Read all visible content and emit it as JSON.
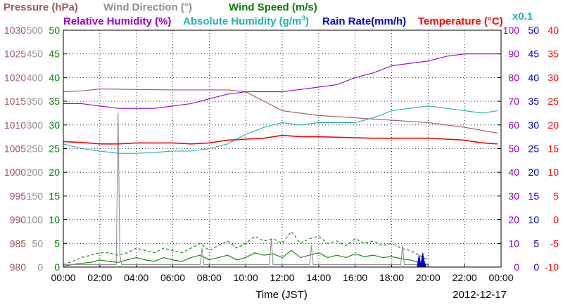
{
  "chart_data": {
    "type": "line",
    "legend": {
      "pressure": "Pressure (hPa)",
      "wind_direction": "Wind Direction (°)",
      "wind_speed": "Wind Speed (m/s)",
      "relative_humidity": "Relative Humidity (%)",
      "absolute_humidity": "Absolute Humidity (g/m",
      "absolute_humidity_sup": "3",
      "absolute_humidity_end": ")",
      "rain_rate": "Rain Rate(mm/h)",
      "temperature": "Temperature (°C)",
      "rain_scale": "x0.1"
    },
    "colors": {
      "pressure": "#a05a5a",
      "wind_direction": "#909090",
      "wind_speed": "#008000",
      "relative_humidity": "#9400d3",
      "absolute_humidity": "#20b2b2",
      "rain_rate": "#0000cd",
      "temperature": "#ff0000"
    },
    "xlabel": "Time (JST)",
    "date": "2012-12-17",
    "xlim": [
      0,
      24
    ],
    "x_ticks": [
      "00:00",
      "02:00",
      "04:00",
      "06:00",
      "08:00",
      "10:00",
      "12:00",
      "14:00",
      "16:00",
      "18:00",
      "20:00",
      "22:00",
      "00:00"
    ],
    "axes": {
      "pressure": {
        "ticks": [
          "1030",
          "1025",
          "1020",
          "1015",
          "1010",
          "1005",
          "1000",
          "995",
          "990",
          "985",
          "980"
        ],
        "ylim": [
          980,
          1030
        ]
      },
      "wind_direction": {
        "ticks": [
          "500",
          "450",
          "400",
          "350",
          "300",
          "250",
          "200",
          "150",
          "100",
          "50",
          "0"
        ],
        "ylim": [
          0,
          500
        ]
      },
      "wind_speed": {
        "ticks": [
          "50",
          "45",
          "40",
          "35",
          "30",
          "25",
          "20",
          "15",
          "10",
          "5",
          "0"
        ],
        "ylim": [
          0,
          50
        ]
      },
      "relative_humidity": {
        "ticks": [
          "100",
          "90",
          "80",
          "70",
          "60",
          "50",
          "40",
          "30",
          "20",
          "10",
          "0"
        ],
        "ylim": [
          0,
          100
        ]
      },
      "rain_rate": {
        "ticks": [
          "50",
          "45",
          "40",
          "35",
          "30",
          "25",
          "20",
          "15",
          "10",
          "5",
          "0"
        ],
        "ylim": [
          0,
          50
        ]
      },
      "temperature": {
        "ticks": [
          "40",
          "35",
          "30",
          "25",
          "20",
          "15",
          "10",
          "5",
          "0",
          "-5",
          "-10"
        ],
        "ylim": [
          -10,
          40
        ]
      }
    },
    "series": [
      {
        "name": "Pressure (hPa)",
        "axis": "pressure",
        "x": [
          0,
          1,
          2,
          4,
          6,
          8,
          9,
          10,
          11,
          12,
          13,
          14,
          16,
          18,
          20,
          22,
          23.8
        ],
        "values": [
          1017.0,
          1017.2,
          1017.6,
          1017.5,
          1017.4,
          1017.4,
          1017.4,
          1017.0,
          1015.0,
          1013.0,
          1012.5,
          1012.0,
          1011.5,
          1011.0,
          1010.5,
          1009.5,
          1008.3
        ]
      },
      {
        "name": "Relative Humidity (%)",
        "axis": "relative_humidity",
        "x": [
          0,
          1,
          2,
          3,
          4,
          5,
          6,
          7,
          8,
          9,
          10,
          11,
          12,
          13,
          14,
          15,
          16,
          17,
          18,
          19,
          20,
          21,
          22,
          23,
          23.8
        ],
        "values": [
          69,
          69,
          68,
          67,
          67,
          67,
          68,
          69,
          71,
          73,
          74,
          74,
          74,
          75,
          76,
          77,
          80,
          82,
          85,
          86,
          87,
          89,
          90,
          90,
          90
        ]
      },
      {
        "name": "Absolute Humidity (g/m3)",
        "axis": "wind_speed",
        "x": [
          0,
          1,
          2,
          3,
          4,
          5,
          6,
          7,
          8,
          9,
          10,
          11,
          12,
          13,
          14,
          15,
          16,
          17,
          18,
          19,
          20,
          21,
          22,
          23,
          23.8
        ],
        "values": [
          26.0,
          25.0,
          24.5,
          24.0,
          24.0,
          24.2,
          24.5,
          24.5,
          25.0,
          26.0,
          28.0,
          29.5,
          30.5,
          30.0,
          30.5,
          30.5,
          30.5,
          31.5,
          33.0,
          33.5,
          34.0,
          33.5,
          33.0,
          32.5,
          33.0
        ]
      },
      {
        "name": "Temperature (°C)",
        "axis": "temperature",
        "x": [
          0,
          1,
          2,
          3,
          4,
          5,
          6,
          7,
          8,
          9,
          10,
          11,
          12,
          13,
          14,
          15,
          16,
          17,
          18,
          19,
          20,
          21,
          22,
          23,
          23.8
        ],
        "values": [
          16.5,
          16.3,
          16.0,
          16.0,
          16.2,
          16.2,
          16.2,
          16.0,
          16.2,
          16.8,
          17.0,
          17.2,
          17.8,
          17.5,
          17.5,
          17.4,
          17.3,
          17.2,
          17.2,
          17.2,
          17.2,
          17.0,
          16.8,
          16.2,
          16.0
        ]
      },
      {
        "name": "Wind Speed (m/s)",
        "axis": "wind_speed",
        "style": "dashed",
        "x": [
          0,
          0.5,
          1,
          1.5,
          2,
          2.5,
          3,
          3.5,
          4,
          4.5,
          5,
          5.5,
          6,
          6.5,
          7,
          7.5,
          8,
          8.5,
          9,
          9.5,
          10,
          10.5,
          11,
          11.5,
          12,
          12.5,
          13,
          13.5,
          14,
          14.5,
          15,
          15.5,
          16,
          16.5,
          17,
          17.5,
          18,
          18.5,
          19,
          19.5,
          20
        ],
        "values": [
          0.5,
          1.2,
          2.0,
          2.5,
          3.0,
          3.0,
          2.5,
          3.0,
          4.0,
          3.5,
          3.0,
          4.0,
          3.5,
          3.0,
          4.0,
          5.0,
          3.5,
          4.5,
          5.5,
          4.0,
          5.0,
          6.5,
          5.5,
          6.0,
          5.0,
          7.5,
          5.0,
          6.0,
          6.5,
          5.0,
          5.5,
          4.5,
          6.0,
          5.0,
          5.5,
          4.5,
          5.0,
          4.0,
          3.5,
          2.5,
          1.5
        ]
      },
      {
        "name": "Wind Speed (m/s)",
        "axis": "wind_speed",
        "style": "solid",
        "x": [
          0,
          0.5,
          1,
          1.5,
          2,
          2.5,
          3,
          3.5,
          4,
          4.5,
          5,
          5.5,
          6,
          6.5,
          7,
          7.5,
          8,
          8.5,
          9,
          9.5,
          10,
          10.5,
          11,
          11.5,
          12,
          12.5,
          13,
          13.5,
          14,
          14.5,
          15,
          15.5,
          16,
          16.5,
          17,
          17.5,
          18,
          18.5,
          19,
          19.5,
          20
        ],
        "values": [
          0.2,
          0.5,
          0.8,
          1.0,
          1.5,
          1.2,
          1.0,
          1.5,
          2.0,
          1.5,
          1.2,
          2.0,
          1.5,
          1.2,
          2.0,
          2.5,
          1.5,
          2.0,
          2.5,
          1.5,
          2.0,
          3.0,
          2.5,
          2.8,
          2.0,
          3.5,
          2.0,
          2.5,
          3.0,
          2.0,
          2.5,
          2.0,
          2.8,
          2.2,
          2.5,
          2.0,
          2.2,
          1.8,
          1.5,
          1.0,
          0.5
        ]
      },
      {
        "name": "Wind Direction (°)",
        "axis": "wind_direction",
        "x": [
          0,
          2.9,
          3.0,
          3.1,
          3.2,
          5,
          7.5,
          7.6,
          7.7,
          10,
          11.3,
          11.4,
          11.5,
          13,
          13.5,
          13.6,
          13.7,
          16,
          18.5,
          18.6,
          18.7,
          19.5
        ],
        "values": [
          5,
          5,
          325,
          25,
          5,
          5,
          5,
          40,
          5,
          5,
          5,
          60,
          5,
          5,
          5,
          45,
          5,
          5,
          5,
          45,
          5,
          5
        ]
      },
      {
        "name": "Rain Rate(mm/h)",
        "axis": "rain_rate",
        "x": [
          19.4,
          19.5,
          19.6,
          19.7,
          19.8,
          19.9
        ],
        "values": [
          0,
          2.5,
          0.5,
          3.0,
          1.0,
          0
        ]
      }
    ]
  }
}
